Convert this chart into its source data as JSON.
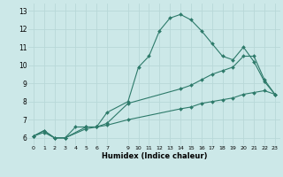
{
  "xlabel": "Humidex (Indice chaleur)",
  "bg_color": "#cce8e8",
  "grid_color": "#b8d8d8",
  "line_color": "#2d7a6a",
  "xlim": [
    -0.5,
    23.5
  ],
  "ylim": [
    5.6,
    13.4
  ],
  "xticks": [
    0,
    1,
    2,
    3,
    4,
    5,
    6,
    7,
    9,
    10,
    11,
    12,
    13,
    14,
    15,
    16,
    17,
    18,
    19,
    20,
    21,
    22,
    23
  ],
  "yticks": [
    6,
    7,
    8,
    9,
    10,
    11,
    12,
    13
  ],
  "series": [
    {
      "x": [
        0,
        1,
        2,
        3,
        4,
        5,
        6,
        7,
        9,
        10,
        11,
        12,
        13,
        14,
        15,
        16,
        17,
        18,
        19,
        20,
        21,
        22,
        23
      ],
      "y": [
        6.1,
        6.4,
        6.0,
        6.0,
        6.6,
        6.6,
        6.6,
        7.4,
        8.0,
        9.9,
        10.5,
        11.9,
        12.6,
        12.8,
        12.5,
        11.9,
        11.2,
        10.5,
        10.3,
        11.0,
        10.2,
        9.1,
        8.4
      ]
    },
    {
      "x": [
        0,
        1,
        2,
        3,
        5,
        6,
        7,
        9,
        14,
        15,
        16,
        17,
        18,
        19,
        20,
        21,
        22,
        23
      ],
      "y": [
        6.1,
        6.4,
        6.0,
        6.0,
        6.6,
        6.6,
        6.8,
        7.9,
        8.7,
        8.9,
        9.2,
        9.5,
        9.7,
        9.9,
        10.5,
        10.5,
        9.2,
        8.4
      ]
    },
    {
      "x": [
        0,
        1,
        2,
        3,
        5,
        6,
        7,
        9,
        14,
        15,
        16,
        17,
        18,
        19,
        20,
        21,
        22,
        23
      ],
      "y": [
        6.1,
        6.3,
        6.0,
        6.0,
        6.5,
        6.6,
        6.7,
        7.0,
        7.6,
        7.7,
        7.9,
        8.0,
        8.1,
        8.2,
        8.4,
        8.5,
        8.6,
        8.4
      ]
    }
  ]
}
